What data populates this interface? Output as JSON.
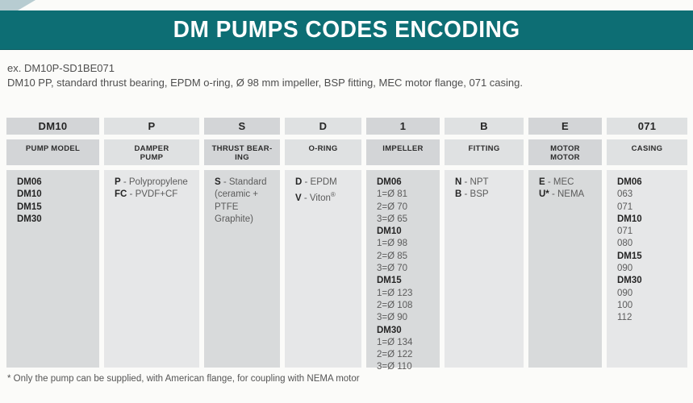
{
  "banner": {
    "title": "DM PUMPS CODES ENCODING"
  },
  "example": {
    "line1": "ex. DM10P-SD1BE071",
    "line2": "DM10 PP, standard thrust bearing, EPDM o-ring, Ø 98 mm impeller, BSP fitting, MEC motor flange, 071 casing."
  },
  "table": {
    "columns": [
      {
        "code": "DM10",
        "label": "PUMP MODEL",
        "items": [
          {
            "b": "DM06"
          },
          {
            "b": "DM10"
          },
          {
            "b": "DM15"
          },
          {
            "b": "DM30"
          }
        ]
      },
      {
        "code": "P",
        "label": "DAMPER\nPUMP",
        "items": [
          {
            "b": "P",
            "t": " - Polypropylene"
          },
          {
            "b": "FC",
            "t": " - PVDF+CF"
          }
        ]
      },
      {
        "code": "S",
        "label": "THRUST BEAR-\nING",
        "items": [
          {
            "b": "S",
            "t": " - Standard"
          },
          {
            "t": "(ceramic +"
          },
          {
            "t": "PTFE Graphite)"
          }
        ]
      },
      {
        "code": "D",
        "label": "O-RING",
        "items": [
          {
            "b": "D",
            "t": " - EPDM"
          },
          {
            "b": "V",
            "t": " - Viton",
            "sup": "®"
          }
        ]
      },
      {
        "code": "1",
        "label": "IMPELLER",
        "items": [
          {
            "b": "DM06"
          },
          {
            "t": "1=Ø 81"
          },
          {
            "t": "2=Ø 70"
          },
          {
            "t": "3=Ø 65"
          },
          {
            "b": "DM10"
          },
          {
            "t": "1=Ø 98"
          },
          {
            "t": "2=Ø 85"
          },
          {
            "t": "3=Ø 70"
          },
          {
            "b": "DM15"
          },
          {
            "t": "1=Ø 123"
          },
          {
            "t": "2=Ø 108"
          },
          {
            "t": "3=Ø 90"
          },
          {
            "b": "DM30"
          },
          {
            "t": "1=Ø 134"
          },
          {
            "t": "2=Ø 122"
          },
          {
            "t": "3=Ø 110"
          }
        ]
      },
      {
        "code": "B",
        "label": "FITTING",
        "items": [
          {
            "b": "N",
            "t": " - NPT"
          },
          {
            "b": "B",
            "t": " - BSP"
          }
        ]
      },
      {
        "code": "E",
        "label": "MOTOR\nMOTOR",
        "items": [
          {
            "b": "E",
            "t": " - MEC"
          },
          {
            "b": "U*",
            "t": " - NEMA"
          }
        ]
      },
      {
        "code": "071",
        "label": "CASING",
        "items": [
          {
            "b": "DM06"
          },
          {
            "t": "063"
          },
          {
            "t": "071"
          },
          {
            "b": "DM10"
          },
          {
            "t": "071"
          },
          {
            "t": "080"
          },
          {
            "b": "DM15"
          },
          {
            "t": "090"
          },
          {
            "b": "DM30"
          },
          {
            "t": "090"
          },
          {
            "t": "100"
          },
          {
            "t": "112"
          }
        ]
      }
    ]
  },
  "footnote": "* Only the pump can be supplied, with American flange, for coupling with NEMA motor",
  "colors": {
    "banner_teal": "#0d6e74",
    "corner_sliver": "#b7ccd1",
    "cell_dark": "#d8dadb",
    "cell_light": "#e6e7e8"
  }
}
